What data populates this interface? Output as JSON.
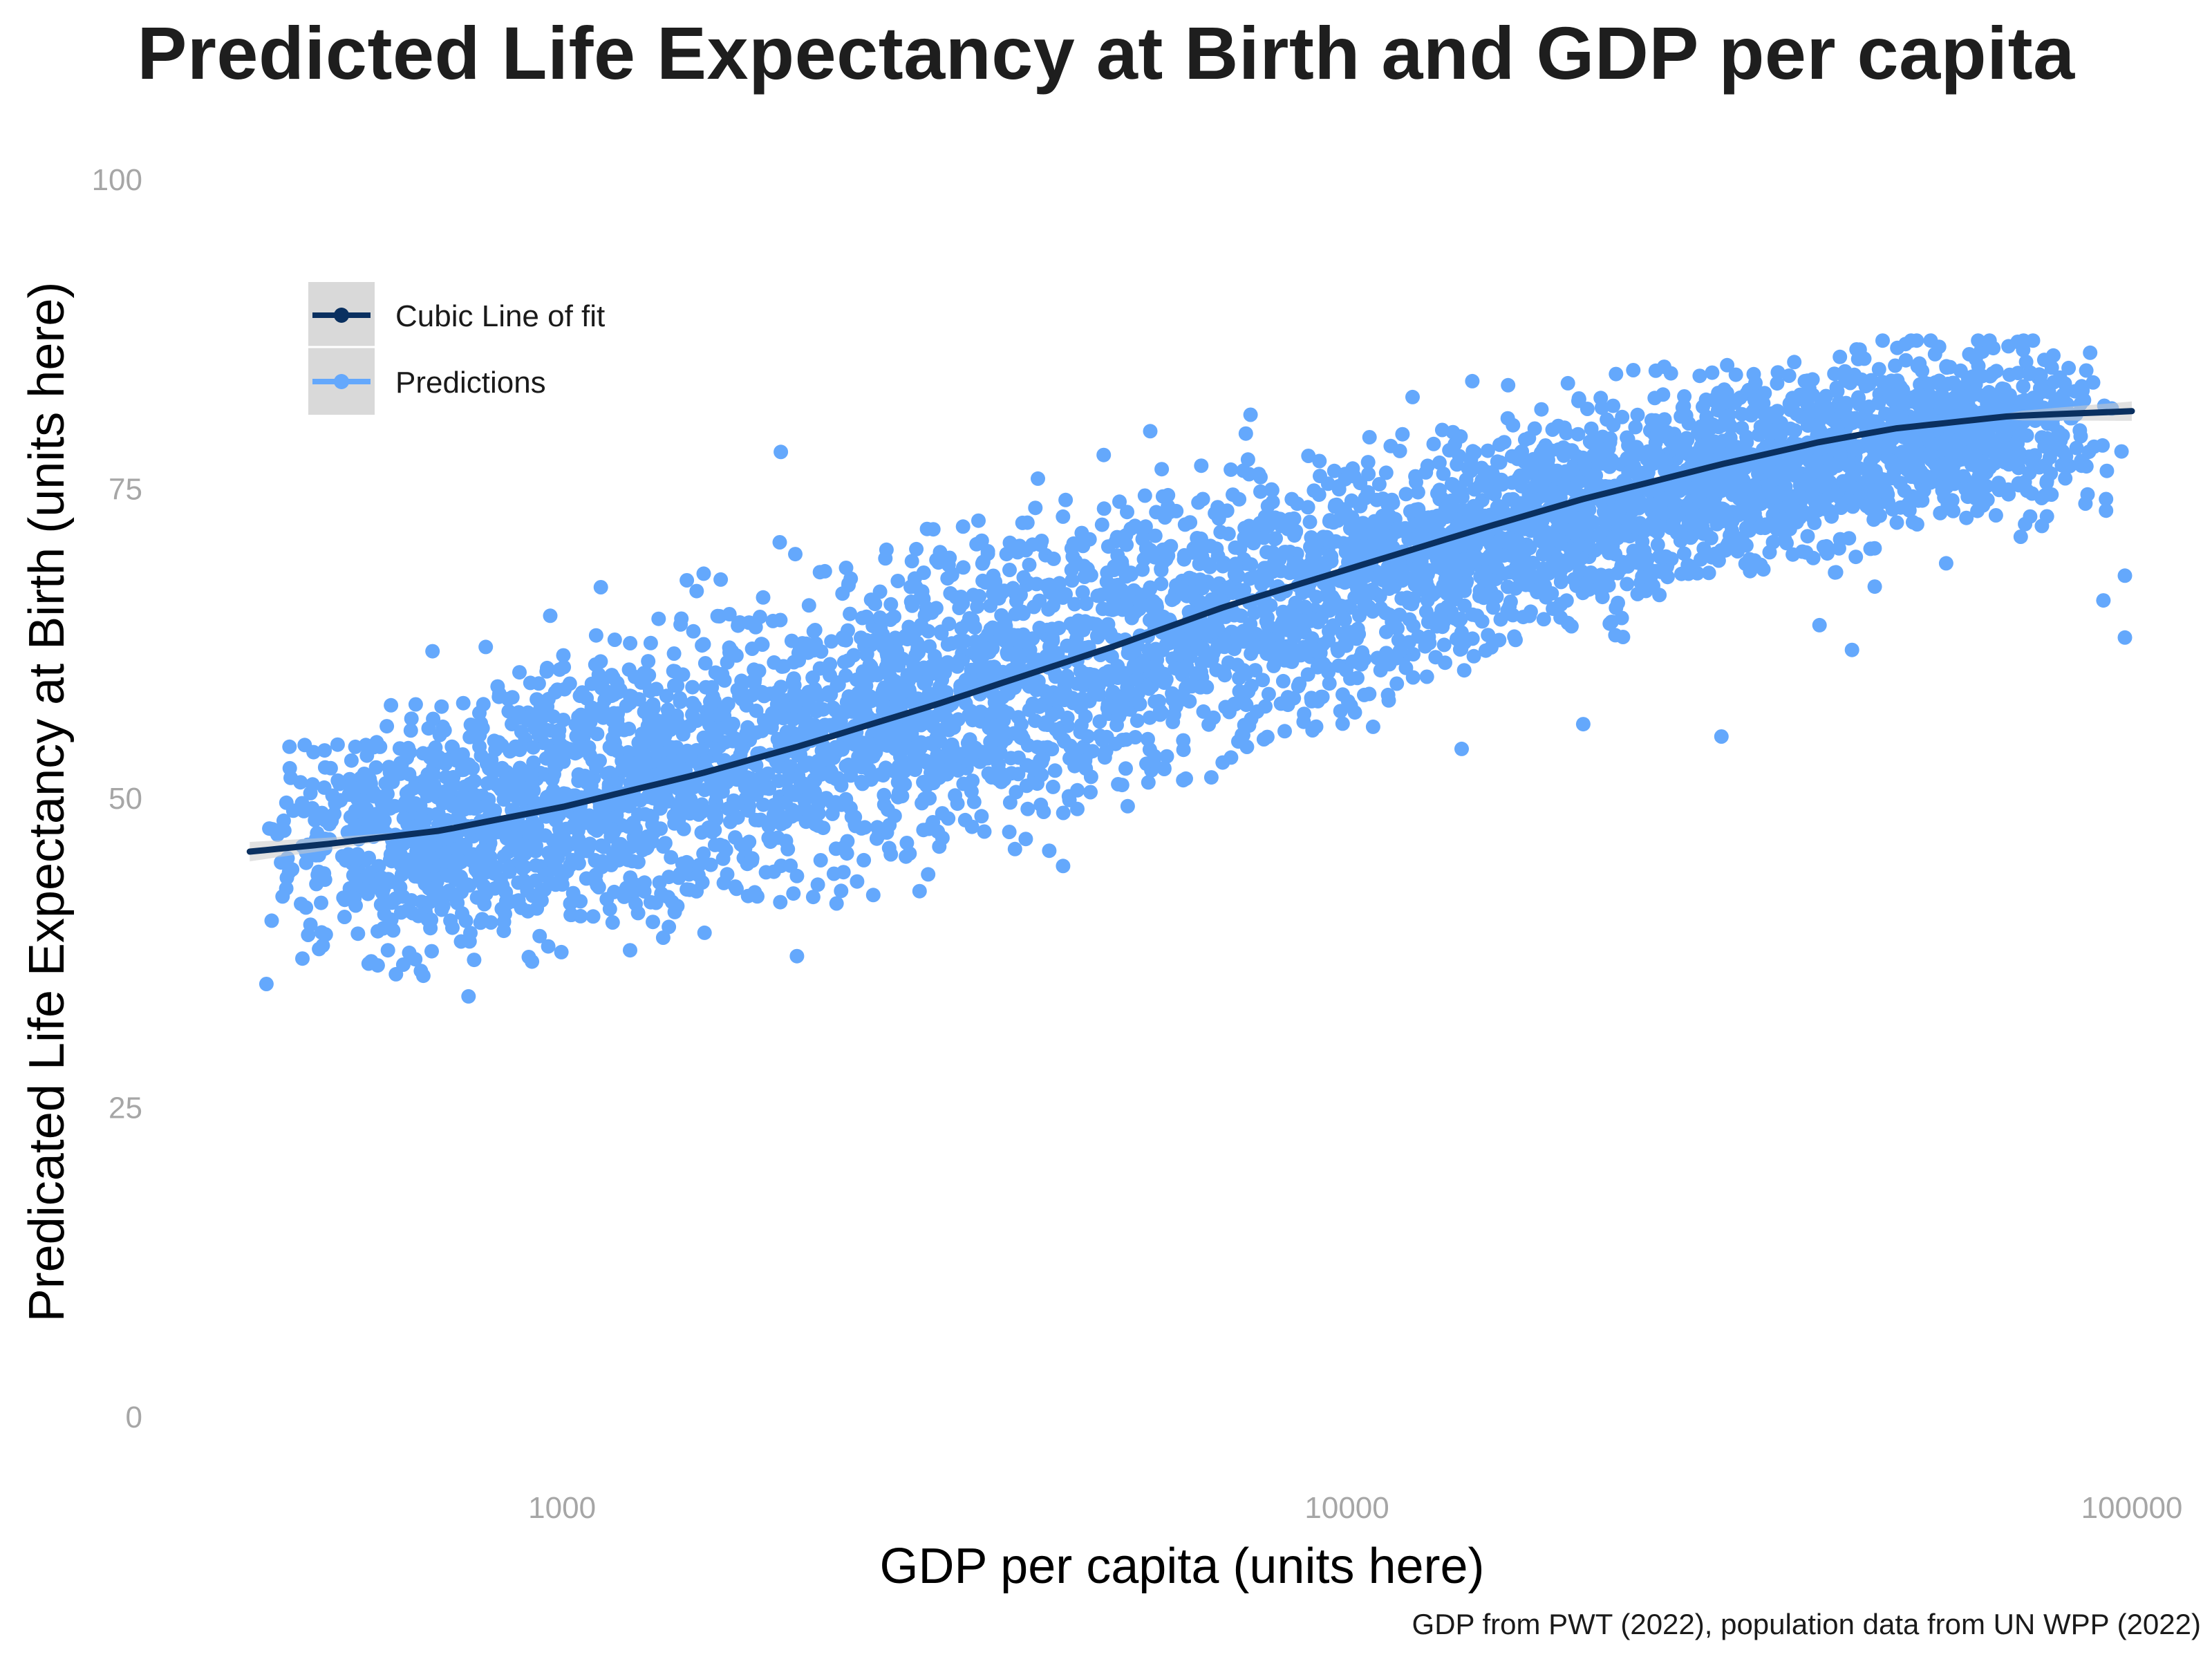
{
  "chart_data": {
    "type": "scatter",
    "title": "Predicted Life Expectancy at Birth and GDP per capita",
    "xlabel": "GDP per capita (units here)",
    "ylabel": "Predicated Life Expectancy at Birth (units here)",
    "caption": "GDP from PWT (2022), population data from UN WPP (2022)",
    "x_scale": "log10",
    "xlim": [
      380,
      100000
    ],
    "ylim": [
      0,
      100
    ],
    "x_ticks": [
      1000,
      10000,
      100000
    ],
    "x_tick_labels": [
      "1000",
      "10000",
      "100000"
    ],
    "y_ticks": [
      0,
      25,
      50,
      75,
      100
    ],
    "y_tick_labels": [
      "0",
      "25",
      "50",
      "75",
      "100"
    ],
    "grid": false,
    "legend_position": "top-left",
    "series": [
      {
        "name": "Predictions",
        "kind": "points",
        "color": "#64a8fc",
        "band_center": [
          [
            400,
            46.5
          ],
          [
            600,
            47
          ],
          [
            1000,
            50
          ],
          [
            1500,
            53
          ],
          [
            2000,
            55
          ],
          [
            3000,
            58
          ],
          [
            5000,
            62
          ],
          [
            8000,
            66
          ],
          [
            10000,
            68
          ],
          [
            15000,
            71
          ],
          [
            20000,
            73
          ],
          [
            30000,
            76
          ],
          [
            50000,
            79
          ],
          [
            70000,
            80
          ],
          [
            100000,
            81
          ]
        ],
        "band_halfwidth": [
          [
            400,
            7
          ],
          [
            1000,
            10
          ],
          [
            3000,
            11
          ],
          [
            10000,
            9
          ],
          [
            30000,
            7
          ],
          [
            100000,
            6
          ]
        ],
        "outliers": [
          [
            420,
            35
          ],
          [
            500,
            39
          ],
          [
            650,
            37
          ],
          [
            760,
            34
          ],
          [
            1900,
            78
          ],
          [
            14000,
            54
          ],
          [
            20000,
            56
          ],
          [
            30000,
            55
          ],
          [
            40000,
            64
          ],
          [
            44000,
            62
          ],
          [
            58000,
            69
          ],
          [
            92000,
            66
          ],
          [
            98000,
            63
          ],
          [
            98000,
            68
          ]
        ]
      },
      {
        "name": "Cubic Line of fit",
        "kind": "line",
        "color": "#0a3060",
        "points": [
          [
            400,
            45.7
          ],
          [
            500,
            46.3
          ],
          [
            700,
            47.4
          ],
          [
            1000,
            49.3
          ],
          [
            1500,
            52.0
          ],
          [
            2000,
            54.2
          ],
          [
            3000,
            57.6
          ],
          [
            5000,
            62.2
          ],
          [
            7000,
            65.5
          ],
          [
            10000,
            68.5
          ],
          [
            15000,
            71.9
          ],
          [
            20000,
            74.2
          ],
          [
            30000,
            77.0
          ],
          [
            40000,
            78.8
          ],
          [
            50000,
            79.9
          ],
          [
            70000,
            80.9
          ],
          [
            100000,
            81.3
          ]
        ]
      }
    ]
  }
}
